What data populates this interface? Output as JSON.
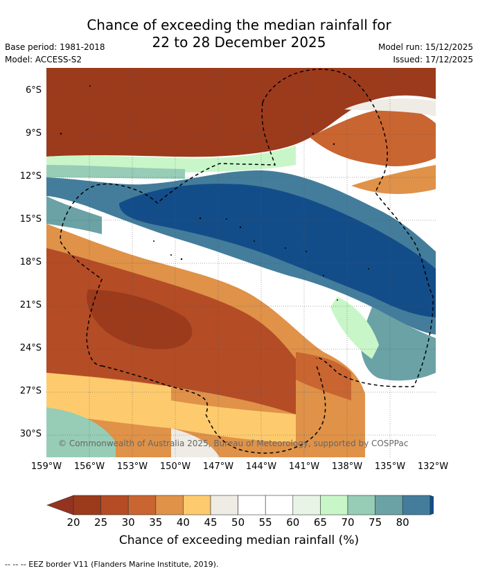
{
  "header": {
    "title_line1": "Chance of exceeding the median rainfall for",
    "title_line2": "22 to 28 December 2025",
    "base_period": "Base period: 1981-2018",
    "model": "Model: ACCESS-S2",
    "model_run": "Model run: 15/12/2025",
    "issued": "Issued: 17/12/2025"
  },
  "map": {
    "lat_labels": [
      "6°S",
      "9°S",
      "12°S",
      "15°S",
      "18°S",
      "21°S",
      "24°S",
      "27°S",
      "30°S"
    ],
    "lon_labels": [
      "159°W",
      "156°W",
      "153°W",
      "150°W",
      "147°W",
      "144°W",
      "141°W",
      "138°W",
      "135°W",
      "132°W"
    ],
    "copyright": "© Commonwealth of Australia 2025, Bureau of Meteorology, supported by COSPPac"
  },
  "colorbar": {
    "labels": [
      "20",
      "25",
      "30",
      "35",
      "40",
      "45",
      "50",
      "55",
      "60",
      "65",
      "70",
      "75",
      "80"
    ],
    "colors": [
      "#9c3a1c",
      "#b44c26",
      "#c96530",
      "#df9248",
      "#fdcb6e",
      "#efebe5",
      "#ffffff",
      "#ffffff",
      "#e8f5e6",
      "#c8f6c8",
      "#97cdb6",
      "#6aa2a6",
      "#437d9b"
    ],
    "under_color": "#943320",
    "over_color": "#134d89",
    "title": "Chance of exceeding median rainfall (%)"
  },
  "footer": "-- -- -- EEZ border V11 (Flanders Marine Institute, 2019)."
}
